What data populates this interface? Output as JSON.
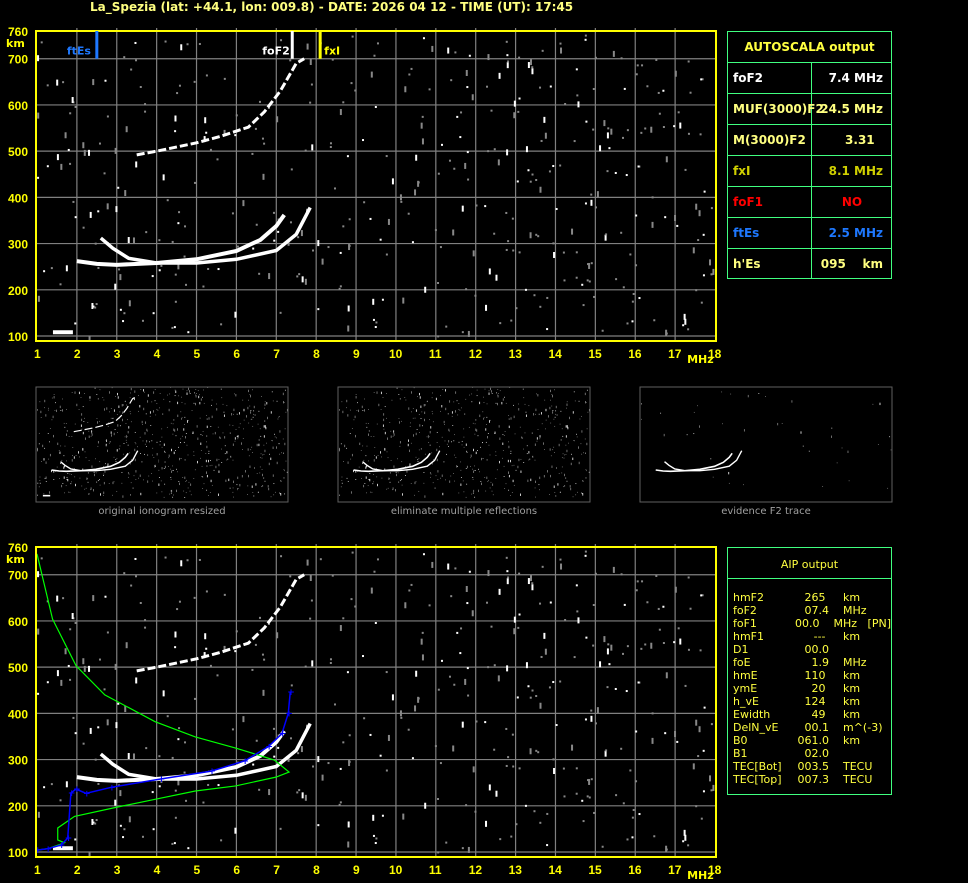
{
  "title": "La_Spezia (lat: +44.1, lon: 009.8) - DATE: 2026 04 12 - TIME (UT): 17:45",
  "colors": {
    "axis": "#ffff00",
    "grid": "#808080",
    "trace": "#ffffff",
    "profile": "#00ff00",
    "true_height": "#0000ff",
    "ftEs": "#1e78ff",
    "foF2": "#ffffff",
    "fxI": "#ffff00",
    "table_border": "#40ff80"
  },
  "autoscala": {
    "title": "AUTOSCALA output",
    "rows": [
      {
        "k": "foF2",
        "v": "7.4 MHz",
        "color": "#ffffff"
      },
      {
        "k": "MUF(3000)F2",
        "v": "24.5 MHz",
        "color": "#ffff80"
      },
      {
        "k": "M(3000)F2",
        "v": "3.31  ",
        "color": "#ffff80"
      },
      {
        "k": "fxI",
        "v": "8.1 MHz",
        "color": "#d0d000"
      },
      {
        "k": "foF1",
        "v": "NO     ",
        "color": "#ff0000"
      },
      {
        "k": "ftEs",
        "v": "2.5 MHz",
        "color": "#1e78ff"
      },
      {
        "k": "h'Es",
        "v": "095    km",
        "color": "#ffff80"
      }
    ]
  },
  "aip": {
    "title": "AIP output",
    "rows": [
      {
        "k": "hmF2",
        "v": "265 ",
        "u": "km"
      },
      {
        "k": "foF2",
        "v": "07.4",
        "u": "MHz"
      },
      {
        "k": "foF1",
        "v": "00.0",
        "u": "MHz   [PN]"
      },
      {
        "k": "hmF1",
        "v": "--- ",
        "u": "km"
      },
      {
        "k": "D1",
        "v": "00.0",
        "u": ""
      },
      {
        "k": "foE",
        "v": "1.9",
        "u": "MHz"
      },
      {
        "k": "hmE",
        "v": "110 ",
        "u": "km"
      },
      {
        "k": "ymE",
        "v": "20 ",
        "u": "km"
      },
      {
        "k": "h_vE",
        "v": "124 ",
        "u": "km"
      },
      {
        "k": "Ewidth",
        "v": "49 ",
        "u": "km"
      },
      {
        "k": "DelN_vE",
        "v": "00.1",
        "u": "m^(-3)"
      },
      {
        "k": "B0",
        "v": "061.0",
        "u": "km"
      },
      {
        "k": "B1",
        "v": "02.0",
        "u": ""
      },
      {
        "k": "TEC[Bot]",
        "v": "003.5",
        "u": "TECU"
      },
      {
        "k": "TEC[Top]",
        "v": "007.3",
        "u": "TECU"
      }
    ]
  },
  "thumbnails": [
    "original ionogram resized",
    "eliminate multiple reflections",
    "evidence F2 trace"
  ],
  "chart_data": {
    "type": "scatter",
    "xlabel": "MHz",
    "ylabel": "km",
    "xlim": [
      1,
      18
    ],
    "ylim": [
      100,
      760
    ],
    "xticks": [
      "1",
      "2",
      "3",
      "4",
      "5",
      "6",
      "7",
      "8",
      "9",
      "10",
      "11",
      "12",
      "13",
      "14",
      "15",
      "16",
      "17",
      "18"
    ],
    "yticks": [
      "100",
      "200",
      "300",
      "400",
      "500",
      "600",
      "700",
      "760"
    ],
    "grid": true,
    "markers": [
      {
        "label": "ftEs",
        "freq": 2.5,
        "color": "#1e78ff"
      },
      {
        "label": "foF2",
        "freq": 7.4,
        "color": "#ffffff"
      },
      {
        "label": "fxI",
        "freq": 8.1,
        "color": "#ffff00"
      }
    ],
    "traces": {
      "F2_ordinary": [
        [
          2.0,
          262
        ],
        [
          2.5,
          256
        ],
        [
          3,
          254
        ],
        [
          4,
          258
        ],
        [
          5,
          266
        ],
        [
          6,
          284
        ],
        [
          6.6,
          308
        ],
        [
          7.0,
          338
        ],
        [
          7.2,
          362
        ]
      ],
      "F2_extraordinary": [
        [
          2.6,
          312
        ],
        [
          2.9,
          290
        ],
        [
          3.3,
          268
        ],
        [
          4,
          258
        ],
        [
          5,
          258
        ],
        [
          6,
          266
        ],
        [
          7,
          285
        ],
        [
          7.5,
          320
        ],
        [
          7.85,
          378
        ]
      ],
      "F2_second_hop": [
        [
          3.5,
          492
        ],
        [
          4,
          500
        ],
        [
          5,
          518
        ],
        [
          5.6,
          532
        ],
        [
          6.3,
          552
        ],
        [
          6.7,
          585
        ],
        [
          7.1,
          630
        ],
        [
          7.5,
          690
        ],
        [
          7.7,
          700
        ]
      ],
      "Es": [
        [
          1.4,
          108
        ],
        [
          1.9,
          108
        ]
      ]
    },
    "profile": [
      [
        1.0,
        745
      ],
      [
        1.39,
        604
      ],
      [
        1.98,
        503
      ],
      [
        2.7,
        440
      ],
      [
        3.96,
        382
      ],
      [
        4.97,
        349
      ],
      [
        5.98,
        325
      ],
      [
        6.95,
        299
      ],
      [
        7.32,
        273
      ],
      [
        6.99,
        262
      ],
      [
        5.98,
        243
      ],
      [
        4.97,
        232
      ],
      [
        3.96,
        214
      ],
      [
        2.95,
        196
      ],
      [
        1.94,
        177
      ],
      [
        1.52,
        152
      ],
      [
        1.52,
        126
      ],
      [
        1.69,
        120
      ],
      [
        1.26,
        107
      ],
      [
        1.0,
        104
      ]
    ],
    "true_height": [
      [
        1.0,
        104
      ],
      [
        1.26,
        107
      ],
      [
        1.6,
        115
      ],
      [
        1.77,
        130
      ],
      [
        1.85,
        228
      ],
      [
        1.98,
        236
      ],
      [
        2.23,
        227
      ],
      [
        2.86,
        240
      ],
      [
        4.1,
        258
      ],
      [
        5.37,
        275
      ],
      [
        6.2,
        297
      ],
      [
        6.8,
        328
      ],
      [
        7.14,
        356
      ],
      [
        7.3,
        400
      ],
      [
        7.35,
        446
      ]
    ]
  }
}
